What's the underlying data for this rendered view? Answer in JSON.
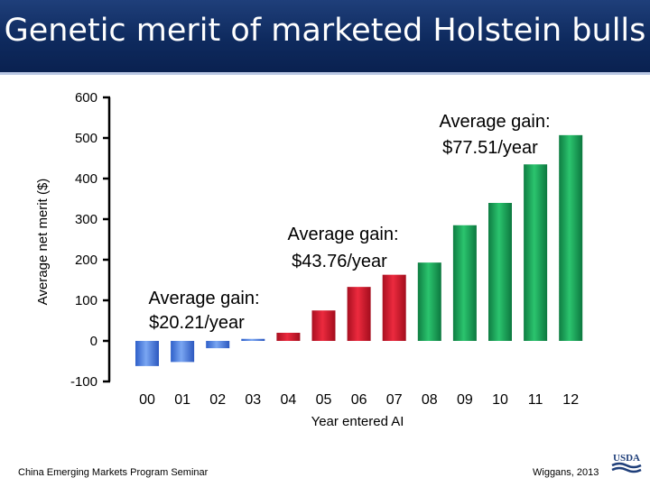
{
  "header": {
    "title": "Genetic merit of marketed Holstein bulls"
  },
  "footer": {
    "left": "China Emerging Markets Program Seminar",
    "right": "Wiggans, 2013",
    "logo_text": "USDA"
  },
  "colors": {
    "blue": "#4a7fe0",
    "red": "#d3122a",
    "green": "#1aa35a",
    "header": "#0e2a5e"
  },
  "chart_data": {
    "type": "bar",
    "ylabel": "Average net merit ($)",
    "xlabel": "Year entered AI",
    "ylim": [
      -100,
      600
    ],
    "yticks": [
      "600",
      "500",
      "400",
      "300",
      "200",
      "100",
      "0",
      "-100"
    ],
    "ytick_values": [
      600,
      500,
      400,
      300,
      200,
      100,
      0,
      -100
    ],
    "categories": [
      "00",
      "01",
      "02",
      "03",
      "04",
      "05",
      "06",
      "07",
      "08",
      "09",
      "10",
      "11",
      "12"
    ],
    "values": [
      -62,
      -52,
      -18,
      5,
      20,
      75,
      133,
      163,
      193,
      285,
      340,
      435,
      507
    ],
    "bar_groups": [
      "blue",
      "blue",
      "blue",
      "blue",
      "red",
      "red",
      "red",
      "red",
      "green",
      "green",
      "green",
      "green",
      "green"
    ],
    "annotations": [
      {
        "line1": "Average gain:",
        "line2": "$20.21/year"
      },
      {
        "line1": "Average gain:",
        "line2": "$43.76/year"
      },
      {
        "line1": "Average gain:",
        "line2": "$77.51/year"
      }
    ],
    "grid": false
  }
}
